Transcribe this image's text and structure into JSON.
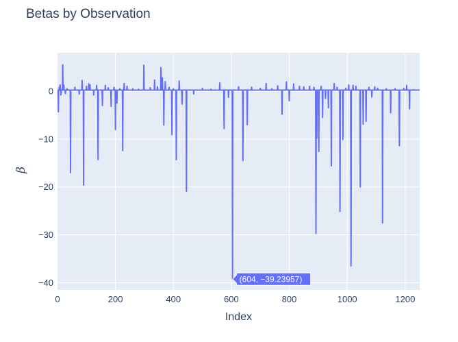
{
  "chart_data": {
    "type": "line",
    "title": "Betas by Observation",
    "xlabel": "Index",
    "ylabel": "β",
    "xlim": [
      0,
      1250
    ],
    "ylim": [
      -41.5,
      8
    ],
    "x_ticks": [
      0,
      200,
      400,
      600,
      800,
      1000,
      1200
    ],
    "y_ticks": [
      0,
      -10,
      -20,
      -30,
      -40
    ],
    "x_tick_labels": [
      "0",
      "200",
      "400",
      "600",
      "800",
      "1000",
      "1200"
    ],
    "y_tick_labels": [
      "0",
      "−10",
      "−20",
      "−30",
      "−40"
    ],
    "grid": true,
    "colors": {
      "line": "#636efa",
      "plot_bg": "#e5ecf6",
      "grid": "#ffffff",
      "text": "#2a3f5f"
    },
    "baseline": 0.2,
    "series": [
      {
        "x": [
          3,
          6,
          9,
          12,
          18,
          22,
          27,
          33,
          45,
          60,
          75,
          85,
          90,
          100,
          108,
          112,
          125,
          135,
          140,
          155,
          165,
          175,
          185,
          195,
          200,
          205,
          215,
          225,
          230,
          240,
          260,
          280,
          298,
          320,
          335,
          345,
          357,
          362,
          367,
          372,
          385,
          395,
          400,
          410,
          420,
          430,
          445,
          470,
          500,
          530,
          560,
          575,
          590,
          604,
          625,
          640,
          655,
          670,
          700,
          720,
          740,
          760,
          775,
          790,
          800,
          815,
          835,
          850,
          870,
          885,
          892,
          895,
          902,
          910,
          915,
          925,
          935,
          945,
          955,
          965,
          975,
          985,
          995,
          1005,
          1013,
          1020,
          1030,
          1045,
          1055,
          1065,
          1075,
          1085,
          1095,
          1105,
          1122,
          1135,
          1150,
          1165,
          1180,
          1195,
          1205,
          1215,
          1230
        ],
        "y": [
          -4.3,
          0.8,
          1.3,
          -0.8,
          5.5,
          1.2,
          -0.5,
          0.5,
          -17.0,
          0.8,
          -0.6,
          2.2,
          -19.6,
          1.0,
          1.5,
          1.3,
          -0.8,
          1.2,
          -14.3,
          -3.0,
          1.2,
          0.7,
          -3.2,
          0.8,
          -8.0,
          -2.5,
          0.5,
          -12.4,
          1.6,
          1.0,
          0.5,
          0.4,
          5.4,
          0.7,
          2.3,
          0.9,
          4.9,
          2.8,
          -7.1,
          2.0,
          0.8,
          -9.1,
          0.5,
          -14.3,
          2.1,
          -2.7,
          -20.9,
          -0.6,
          0.6,
          0.4,
          1.7,
          -7.8,
          -1.3,
          -39.23957,
          0.9,
          -14.5,
          -7.0,
          0.8,
          0.6,
          1.6,
          0.5,
          1.1,
          -4.8,
          1.9,
          -2.0,
          1.5,
          1.0,
          0.9,
          1.0,
          0.8,
          -29.7,
          -9.8,
          -12.6,
          1.0,
          -5.5,
          -1.5,
          -3.5,
          -15.6,
          1.6,
          0.8,
          -25.1,
          -10.1,
          0.6,
          1.3,
          -36.5,
          1.2,
          1.0,
          -20.0,
          -6.9,
          -6.3,
          0.8,
          -1.2,
          0.9,
          0.6,
          -27.5,
          0.5,
          -4.5,
          0.5,
          -11.4,
          0.6,
          1.2,
          -3.7,
          0.3
        ]
      }
    ],
    "hover_label": "(604, −39.23957)"
  }
}
